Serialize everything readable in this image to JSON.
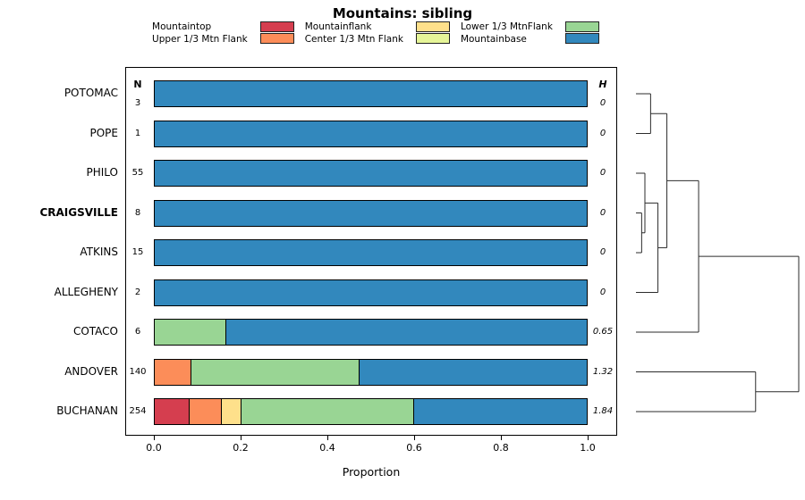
{
  "title": "Mountains: sibling",
  "chart_data": {
    "type": "bar",
    "stacked": true,
    "orientation": "horizontal",
    "title": "Mountains: sibling",
    "xlabel": "Proportion",
    "xlim": [
      0,
      1
    ],
    "xticks": [
      0,
      0.2,
      0.4,
      0.6,
      0.8,
      1.0
    ],
    "xtick_labels": [
      "0.0",
      "0.2",
      "0.4",
      "0.6",
      "0.8",
      "1.0"
    ],
    "legend_position": "top",
    "grid": false,
    "n_header": "N",
    "h_header": "H",
    "categories": [
      {
        "label": "Mountaintop",
        "color": "#d53e4f"
      },
      {
        "label": "Upper 1/3 Mtn Flank",
        "color": "#fc8d59"
      },
      {
        "label": "Mountainflank",
        "color": "#fee08b"
      },
      {
        "label": "Center 1/3 Mtn Flank",
        "color": "#e6f598"
      },
      {
        "label": "Lower 1/3 MtnFlank",
        "color": "#99d594"
      },
      {
        "label": "Mountainbase",
        "color": "#3288bd"
      }
    ],
    "rows": [
      {
        "series": "POTOMAC",
        "bold": false,
        "n": 3,
        "h": "0",
        "values": [
          0,
          0,
          0,
          0,
          0,
          1
        ]
      },
      {
        "series": "POPE",
        "bold": false,
        "n": 1,
        "h": "0",
        "values": [
          0,
          0,
          0,
          0,
          0,
          1
        ]
      },
      {
        "series": "PHILO",
        "bold": false,
        "n": 55,
        "h": "0",
        "values": [
          0,
          0,
          0,
          0,
          0,
          1
        ]
      },
      {
        "series": "CRAIGSVILLE",
        "bold": true,
        "n": 8,
        "h": "0",
        "values": [
          0,
          0,
          0,
          0,
          0,
          1
        ]
      },
      {
        "series": "ATKINS",
        "bold": false,
        "n": 15,
        "h": "0",
        "values": [
          0,
          0,
          0,
          0,
          0,
          1
        ]
      },
      {
        "series": "ALLEGHENY",
        "bold": false,
        "n": 2,
        "h": "0",
        "values": [
          0,
          0,
          0,
          0,
          0,
          1
        ]
      },
      {
        "series": "COTACO",
        "bold": false,
        "n": 6,
        "h": "0.65",
        "values": [
          0,
          0,
          0,
          0,
          0.165,
          0.835
        ]
      },
      {
        "series": "ANDOVER",
        "bold": false,
        "n": 140,
        "h": "1.32",
        "values": [
          0,
          0.085,
          0,
          0,
          0.39,
          0.525
        ]
      },
      {
        "series": "BUCHANAN",
        "bold": false,
        "n": 254,
        "h": "1.84",
        "values": [
          0.08,
          0.075,
          0.045,
          0,
          0.4,
          0.4
        ]
      }
    ],
    "dendrogram": {
      "merges": [
        {
          "id": "m1",
          "a": "CRAIGSVILLE",
          "b": "ATKINS",
          "h": 0.035
        },
        {
          "id": "m2",
          "a": "PHILO",
          "b": "m1",
          "h": 0.055
        },
        {
          "id": "m3",
          "a": "m2",
          "b": "ALLEGHENY",
          "h": 0.135
        },
        {
          "id": "m4",
          "a": "POTOMAC",
          "b": "POPE",
          "h": 0.09
        },
        {
          "id": "m5",
          "a": "m4",
          "b": "m3",
          "h": 0.19
        },
        {
          "id": "m6",
          "a": "m5",
          "b": "COTACO",
          "h": 0.385
        },
        {
          "id": "m7",
          "a": "ANDOVER",
          "b": "BUCHANAN",
          "h": 0.735
        },
        {
          "id": "m8",
          "a": "m6",
          "b": "m7",
          "h": 1.0
        }
      ]
    }
  }
}
